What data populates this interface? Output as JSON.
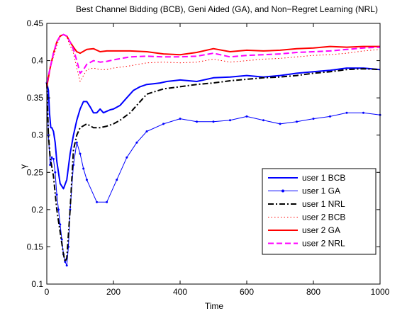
{
  "chart_data": {
    "type": "line",
    "title": "Best Channel Bidding (BCB), Geni Aided (GA), and Non−Regret Learning (NRL)",
    "xlabel": "Time",
    "ylabel": "γ",
    "xlim": [
      0,
      1000
    ],
    "ylim": [
      0.1,
      0.45
    ],
    "xticks": [
      0,
      200,
      400,
      600,
      800,
      1000
    ],
    "yticks": [
      0.1,
      0.15,
      0.2,
      0.25,
      0.3,
      0.35,
      0.4,
      0.45
    ],
    "xtick_labels": [
      "0",
      "200",
      "400",
      "600",
      "800",
      "1000"
    ],
    "ytick_labels": [
      "0.1",
      "0.15",
      "0.2",
      "0.25",
      "0.3",
      "0.35",
      "0.4",
      "0.45"
    ],
    "grid": false,
    "legend_position": "lower-right",
    "series": [
      {
        "name": "user 1 BCB",
        "color": "#0000ff",
        "style": "solid",
        "width": 2,
        "marker": "none",
        "x": [
          0,
          5,
          8,
          12,
          15,
          20,
          25,
          30,
          40,
          50,
          60,
          70,
          80,
          90,
          100,
          110,
          120,
          130,
          140,
          150,
          160,
          170,
          180,
          190,
          200,
          220,
          240,
          260,
          280,
          300,
          320,
          340,
          360,
          380,
          400,
          450,
          500,
          550,
          600,
          650,
          700,
          750,
          800,
          850,
          900,
          950,
          1000
        ],
        "y": [
          0.37,
          0.36,
          0.33,
          0.31,
          0.31,
          0.305,
          0.29,
          0.265,
          0.235,
          0.228,
          0.24,
          0.275,
          0.3,
          0.32,
          0.335,
          0.345,
          0.345,
          0.338,
          0.33,
          0.33,
          0.335,
          0.33,
          0.332,
          0.334,
          0.335,
          0.34,
          0.35,
          0.36,
          0.365,
          0.368,
          0.369,
          0.37,
          0.372,
          0.373,
          0.374,
          0.372,
          0.377,
          0.378,
          0.38,
          0.378,
          0.38,
          0.383,
          0.385,
          0.387,
          0.39,
          0.39,
          0.388
        ]
      },
      {
        "name": "user 1 GA",
        "color": "#0000ff",
        "style": "solid",
        "width": 1,
        "marker": "dot",
        "x": [
          0,
          5,
          10,
          15,
          20,
          25,
          30,
          35,
          40,
          45,
          50,
          55,
          60,
          65,
          70,
          80,
          90,
          100,
          110,
          120,
          150,
          180,
          210,
          240,
          270,
          300,
          350,
          400,
          450,
          500,
          550,
          600,
          650,
          700,
          750,
          800,
          850,
          900,
          950,
          1000
        ],
        "y": [
          0.37,
          0.3,
          0.26,
          0.27,
          0.268,
          0.25,
          0.22,
          0.2,
          0.18,
          0.16,
          0.14,
          0.13,
          0.125,
          0.15,
          0.2,
          0.26,
          0.29,
          0.275,
          0.255,
          0.24,
          0.21,
          0.21,
          0.24,
          0.27,
          0.29,
          0.305,
          0.315,
          0.322,
          0.318,
          0.318,
          0.32,
          0.325,
          0.32,
          0.315,
          0.318,
          0.322,
          0.325,
          0.33,
          0.33,
          0.327
        ]
      },
      {
        "name": "user 1 NRL",
        "color": "#000000",
        "style": "dashdot",
        "width": 2,
        "marker": "none",
        "x": [
          0,
          5,
          10,
          20,
          30,
          40,
          50,
          55,
          60,
          70,
          80,
          90,
          100,
          120,
          140,
          160,
          180,
          200,
          220,
          250,
          280,
          300,
          350,
          400,
          450,
          500,
          550,
          600,
          650,
          700,
          750,
          800,
          850,
          900,
          950,
          1000
        ],
        "y": [
          0.37,
          0.3,
          0.27,
          0.245,
          0.2,
          0.17,
          0.14,
          0.13,
          0.135,
          0.2,
          0.28,
          0.3,
          0.31,
          0.315,
          0.31,
          0.31,
          0.312,
          0.315,
          0.32,
          0.33,
          0.345,
          0.355,
          0.362,
          0.365,
          0.368,
          0.37,
          0.373,
          0.375,
          0.377,
          0.378,
          0.38,
          0.383,
          0.385,
          0.388,
          0.389,
          0.388
        ]
      },
      {
        "name": "user 2 BCB",
        "color": "#ff0000",
        "style": "dotted",
        "width": 1,
        "marker": "none",
        "x": [
          0,
          10,
          20,
          30,
          40,
          50,
          60,
          70,
          80,
          90,
          100,
          110,
          120,
          140,
          160,
          180,
          200,
          250,
          300,
          350,
          400,
          450,
          500,
          550,
          600,
          650,
          700,
          750,
          800,
          850,
          900,
          950,
          1000
        ],
        "y": [
          0.37,
          0.39,
          0.405,
          0.42,
          0.432,
          0.435,
          0.432,
          0.42,
          0.41,
          0.39,
          0.372,
          0.38,
          0.388,
          0.39,
          0.388,
          0.388,
          0.39,
          0.393,
          0.397,
          0.398,
          0.397,
          0.398,
          0.402,
          0.398,
          0.4,
          0.402,
          0.403,
          0.405,
          0.407,
          0.408,
          0.41,
          0.413,
          0.415
        ]
      },
      {
        "name": "user 2 GA",
        "color": "#ff0000",
        "style": "solid",
        "width": 2,
        "marker": "none",
        "x": [
          0,
          10,
          20,
          30,
          40,
          50,
          60,
          70,
          80,
          90,
          100,
          120,
          140,
          160,
          180,
          200,
          250,
          300,
          350,
          400,
          450,
          500,
          550,
          600,
          650,
          700,
          750,
          800,
          850,
          900,
          950,
          1000
        ],
        "y": [
          0.365,
          0.39,
          0.41,
          0.425,
          0.433,
          0.435,
          0.433,
          0.425,
          0.418,
          0.412,
          0.41,
          0.415,
          0.416,
          0.412,
          0.413,
          0.413,
          0.413,
          0.412,
          0.409,
          0.408,
          0.411,
          0.416,
          0.412,
          0.414,
          0.413,
          0.414,
          0.416,
          0.417,
          0.419,
          0.418,
          0.419,
          0.419
        ]
      },
      {
        "name": "user 2 NRL",
        "color": "#ff00ff",
        "style": "dashed",
        "width": 2,
        "marker": "none",
        "x": [
          0,
          10,
          20,
          30,
          40,
          50,
          60,
          70,
          80,
          90,
          100,
          110,
          120,
          140,
          160,
          180,
          200,
          250,
          300,
          350,
          400,
          450,
          500,
          550,
          600,
          650,
          700,
          750,
          800,
          850,
          900,
          950,
          1000
        ],
        "y": [
          0.37,
          0.39,
          0.41,
          0.425,
          0.433,
          0.435,
          0.433,
          0.425,
          0.415,
          0.4,
          0.383,
          0.388,
          0.395,
          0.4,
          0.398,
          0.399,
          0.401,
          0.405,
          0.406,
          0.405,
          0.405,
          0.406,
          0.41,
          0.405,
          0.407,
          0.408,
          0.409,
          0.411,
          0.412,
          0.413,
          0.415,
          0.417,
          0.418
        ]
      }
    ]
  }
}
